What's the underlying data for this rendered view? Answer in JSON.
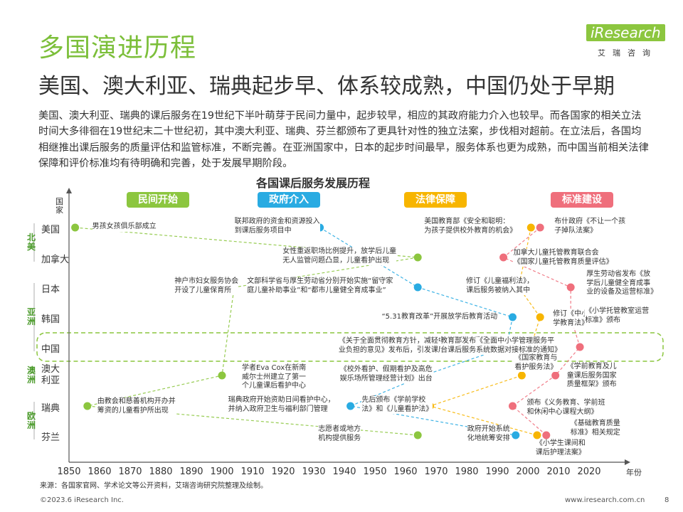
{
  "header": {
    "title": "多国演进历程",
    "subtitle": "美国、澳大利亚、瑞典起步早、体系较成熟，中国仍处于早期",
    "intro": "美国、澳大利亚、瑞典的课后服务在19世纪下半叶萌芽于民间力量中，起步较早，相应的其政府能力介入也较早。而各国家的相关立法时间大多徘徊在19世纪末二十世纪初，其中澳大利亚、瑞典、芬兰都颁布了更具针对性的独立法案，步伐相对超前。在立法后，各国均相继推出课后服务的质量评估和监管标准，不断完善。在亚洲国家中，日本的起步时间最早，服务体系也更为成熟，而中国当前相关法律保障和评价标准均有待明确和完善，处于发展早期阶段。"
  },
  "logo": {
    "word": "iResearch",
    "sub": "艾瑞咨询"
  },
  "chart_title": "各国课后服务发展历程",
  "colors": {
    "green": "#8cc63f",
    "blue": "#29abe2",
    "yellow": "#f7b500",
    "pink": "#ef6f7c"
  },
  "stages": [
    {
      "label": "民间开始",
      "color": "#8cc63f"
    },
    {
      "label": "政府介入",
      "color": "#29abe2"
    },
    {
      "label": "法律保障",
      "color": "#f7b500"
    },
    {
      "label": "标准建设",
      "color": "#ef6f7c"
    }
  ],
  "axis": {
    "y_label": "国家",
    "x_label": "年份",
    "x_ticks": [
      "1850",
      "1860",
      "1870",
      "1880",
      "1890",
      "1900",
      "1910",
      "1920",
      "1930",
      "1940",
      "1950",
      "1960",
      "1970",
      "1980",
      "1990",
      "2000",
      "2010",
      "2020"
    ]
  },
  "groups": [
    {
      "label": "北美"
    },
    {
      "label": "亚洲"
    },
    {
      "label": "澳洲"
    },
    {
      "label": "欧洲"
    }
  ],
  "countries": [
    "美国",
    "加拿大",
    "日本",
    "韩国",
    "中国",
    "澳大利亚",
    "瑞典",
    "芬兰"
  ],
  "chart_data": {
    "type": "timeline",
    "xlabel": "年份",
    "ylabel": "国家",
    "xlim": [
      1850,
      2025
    ],
    "events": [
      {
        "country": "美国",
        "year": 1852,
        "stage": 0,
        "text": "男孩女孩俱乐部成立"
      },
      {
        "country": "美国",
        "year": 1932,
        "stage": 1,
        "text": "联邦政府的资金和资源投入\n到课后服务项目中"
      },
      {
        "country": "美国",
        "year": 2001,
        "stage": 2,
        "text": "美国教育部《安全和聪明：\n为孩子提供校外教育的机会》"
      },
      {
        "country": "美国",
        "year": 2004,
        "stage": 3,
        "text": "布什政府《不让一个孩\n子掉队法案》"
      },
      {
        "country": "加拿大",
        "year": 1964,
        "stage": 0,
        "text": "女性重返职场比例提升，放学后儿童\n无人监管问题凸显，儿童看护出现"
      },
      {
        "country": "加拿大",
        "year": 1992,
        "stage": 3,
        "text": "加拿大儿童托管教育联合会\n《国家儿童托管教育质量评估》"
      },
      {
        "country": "日本",
        "year": 1904,
        "stage": 0,
        "text": "神户市妇女服务协会\n开设了儿童保育所"
      },
      {
        "country": "日本",
        "year": 1964,
        "stage": 1,
        "text": "文部科学省与厚生劳动省分别开始实施“留守家\n庭儿童补助事业”和“都市儿童健全育成事业”"
      },
      {
        "country": "日本",
        "year": 1997,
        "stage": 2,
        "text": "修订《儿童福利法》，\n课后服务被纳入其中"
      },
      {
        "country": "日本",
        "year": 2014,
        "stage": 3,
        "text": "厚生劳动省发布《放\n学后儿童健全育成事\n业的设备及运营标准》"
      },
      {
        "country": "韩国",
        "year": 1995,
        "stage": 1,
        "text": "“5.31教育改革”开展放学后教育活动"
      },
      {
        "country": "韩国",
        "year": 2004,
        "stage": 2,
        "text": "修订《中小\n学教育法》"
      },
      {
        "country": "韩国",
        "year": 2014,
        "stage": 3,
        "text": "《小学托管教室运营\n标准》颁布"
      },
      {
        "country": "中国",
        "year": 1993,
        "stage": 1,
        "text": "《关于全面贯彻教育方针，减轻中小学生过重课\n业负担的意见》发布后，引发课后三点半问题"
      },
      {
        "country": "中国",
        "year": 2017,
        "stage": 3,
        "text": "教育部发布《全面中小学管理服务平\n台课后服务系统数据对接标准的通知》"
      },
      {
        "country": "澳大利亚",
        "year": 1900,
        "stage": 0,
        "text": "学者Eva Cox在新南\n威尔士州建立了第一\n个儿童课后看护中心"
      },
      {
        "country": "澳大利亚",
        "year": 1966,
        "stage": 1,
        "text": "《校外看护、假期看护及高危\n娱乐场所管理经营计划》出台"
      },
      {
        "country": "澳大利亚",
        "year": 1998,
        "stage": 2,
        "text": "《国家教育与\n看护服务法》"
      },
      {
        "country": "澳大利亚",
        "year": 2009,
        "stage": 3,
        "text": "《学前教育及儿\n童课后服务国家\n质量框架》颁布"
      },
      {
        "country": "瑞典",
        "year": 1856,
        "stage": 0,
        "text": "由教会和慈善机构开办并\n筹资的儿童看护所出现"
      },
      {
        "country": "瑞典",
        "year": 1942,
        "stage": 1,
        "text": "瑞典政府开始资助日间看护中心，\n并纳入政府卫生与福利部门管理"
      },
      {
        "country": "瑞典",
        "year": 1968,
        "stage": 2,
        "text": "先后颁布《学前学校\n法》和《儿童看护法》"
      },
      {
        "country": "瑞典",
        "year": 1995,
        "stage": 3,
        "text": "颁布《义务教育、学前班\n和休闲中心课程大纲》"
      },
      {
        "country": "芬兰",
        "year": 1964,
        "stage": 0,
        "text": "志愿者或地方\n机构提供服务"
      },
      {
        "country": "芬兰",
        "year": 1996,
        "stage": 1,
        "text": "政府开始系统\n化地统筹安排"
      },
      {
        "country": "芬兰",
        "year": 2003,
        "stage": 2,
        "text": "《小学生课间和\n课后护理法案》"
      },
      {
        "country": "芬兰",
        "year": 2006,
        "stage": 3,
        "text": "《基础教育质量\n标准》相关规定"
      }
    ]
  },
  "footer": {
    "source": "来源：各国家官网、学术论文等公开资料，艾瑞咨询研究院整理及绘制。",
    "copyright": "©2023.6 iResearch Inc.",
    "website": "www.iresearch.com.cn",
    "page": "8"
  }
}
